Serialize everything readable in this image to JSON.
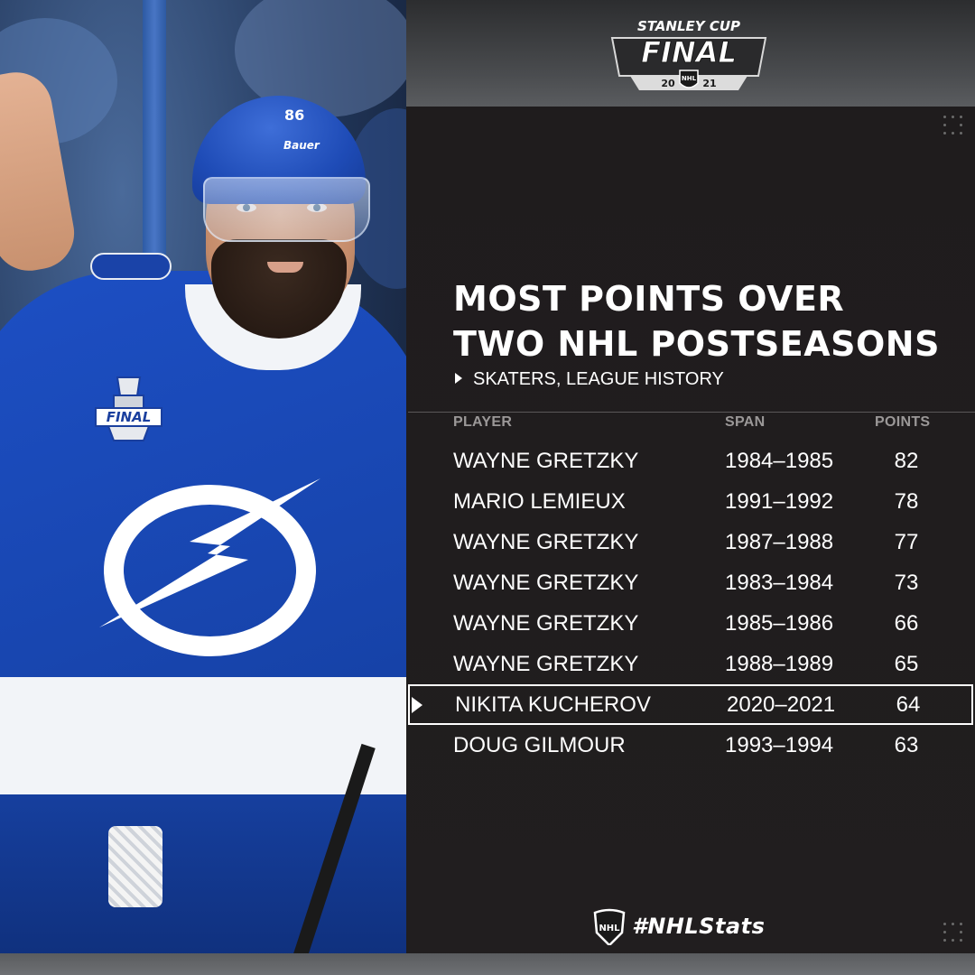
{
  "header": {
    "logo_line1": "STANLEY CUP",
    "logo_line2": "FINAL",
    "logo_year_left": "20",
    "logo_year_right": "21",
    "logo_league": "NHL"
  },
  "photo": {
    "helmet_number": "86",
    "helmet_brand": "Bauer",
    "patch_text": "FINAL"
  },
  "infographic": {
    "title_line1": "MOST POINTS OVER",
    "title_line2": "TWO NHL POSTSEASONS",
    "subtitle": "SKATERS, LEAGUE HISTORY",
    "columns": {
      "player": "PLAYER",
      "span": "SPAN",
      "points": "POINTS"
    },
    "rows": [
      {
        "player": "WAYNE GRETZKY",
        "span": "1984–1985",
        "points": "82",
        "highlight": false
      },
      {
        "player": "MARIO LEMIEUX",
        "span": "1991–1992",
        "points": "78",
        "highlight": false
      },
      {
        "player": "WAYNE GRETZKY",
        "span": "1987–1988",
        "points": "77",
        "highlight": false
      },
      {
        "player": "WAYNE GRETZKY",
        "span": "1983–1984",
        "points": "73",
        "highlight": false
      },
      {
        "player": "WAYNE GRETZKY",
        "span": "1985–1986",
        "points": "66",
        "highlight": false
      },
      {
        "player": "WAYNE GRETZKY",
        "span": "1988–1989",
        "points": "65",
        "highlight": false
      },
      {
        "player": "NIKITA KUCHEROV",
        "span": "2020–2021",
        "points": "64",
        "highlight": true
      },
      {
        "player": "DOUG GILMOUR",
        "span": "1993–1994",
        "points": "63",
        "highlight": false
      }
    ]
  },
  "footer": {
    "hashtag": "#NHLStats",
    "league_mark": "NHL"
  },
  "colors": {
    "panel_bg": "#201d1e",
    "text": "#ffffff",
    "muted": "#9b9898",
    "lightning_blue": "#1d4fc4"
  }
}
